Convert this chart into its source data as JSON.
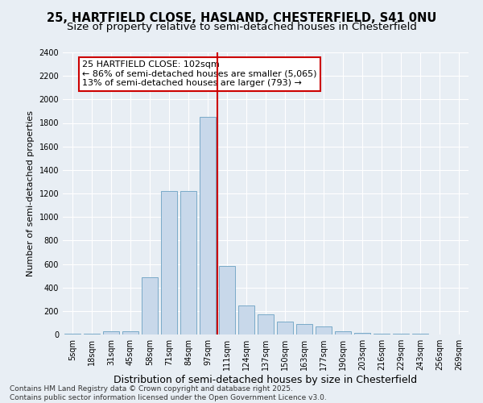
{
  "title1": "25, HARTFIELD CLOSE, HASLAND, CHESTERFIELD, S41 0NU",
  "title2": "Size of property relative to semi-detached houses in Chesterfield",
  "xlabel": "Distribution of semi-detached houses by size in Chesterfield",
  "ylabel": "Number of semi-detached properties",
  "categories": [
    "5sqm",
    "18sqm",
    "31sqm",
    "45sqm",
    "58sqm",
    "71sqm",
    "84sqm",
    "97sqm",
    "111sqm",
    "124sqm",
    "137sqm",
    "150sqm",
    "163sqm",
    "177sqm",
    "190sqm",
    "203sqm",
    "216sqm",
    "229sqm",
    "243sqm",
    "256sqm",
    "269sqm"
  ],
  "values": [
    5,
    5,
    25,
    25,
    490,
    1220,
    1220,
    1850,
    580,
    250,
    170,
    110,
    90,
    70,
    30,
    15,
    8,
    5,
    4,
    3,
    2
  ],
  "bar_color": "#c8d8ea",
  "bar_edge_color": "#7aaac8",
  "vline_color": "#cc0000",
  "annotation_text": "25 HARTFIELD CLOSE: 102sqm\n← 86% of semi-detached houses are smaller (5,065)\n13% of semi-detached houses are larger (793) →",
  "annotation_box_color": "#ffffff",
  "annotation_box_edge": "#cc0000",
  "ylim": [
    0,
    2400
  ],
  "yticks": [
    0,
    200,
    400,
    600,
    800,
    1000,
    1200,
    1400,
    1600,
    1800,
    2000,
    2200,
    2400
  ],
  "background_color": "#e8eef4",
  "grid_color": "#ffffff",
  "footnote": "Contains HM Land Registry data © Crown copyright and database right 2025.\nContains public sector information licensed under the Open Government Licence v3.0.",
  "title_fontsize": 10.5,
  "subtitle_fontsize": 9.5,
  "xlabel_fontsize": 9,
  "ylabel_fontsize": 8,
  "tick_fontsize": 7,
  "annotation_fontsize": 8,
  "footnote_fontsize": 6.5
}
